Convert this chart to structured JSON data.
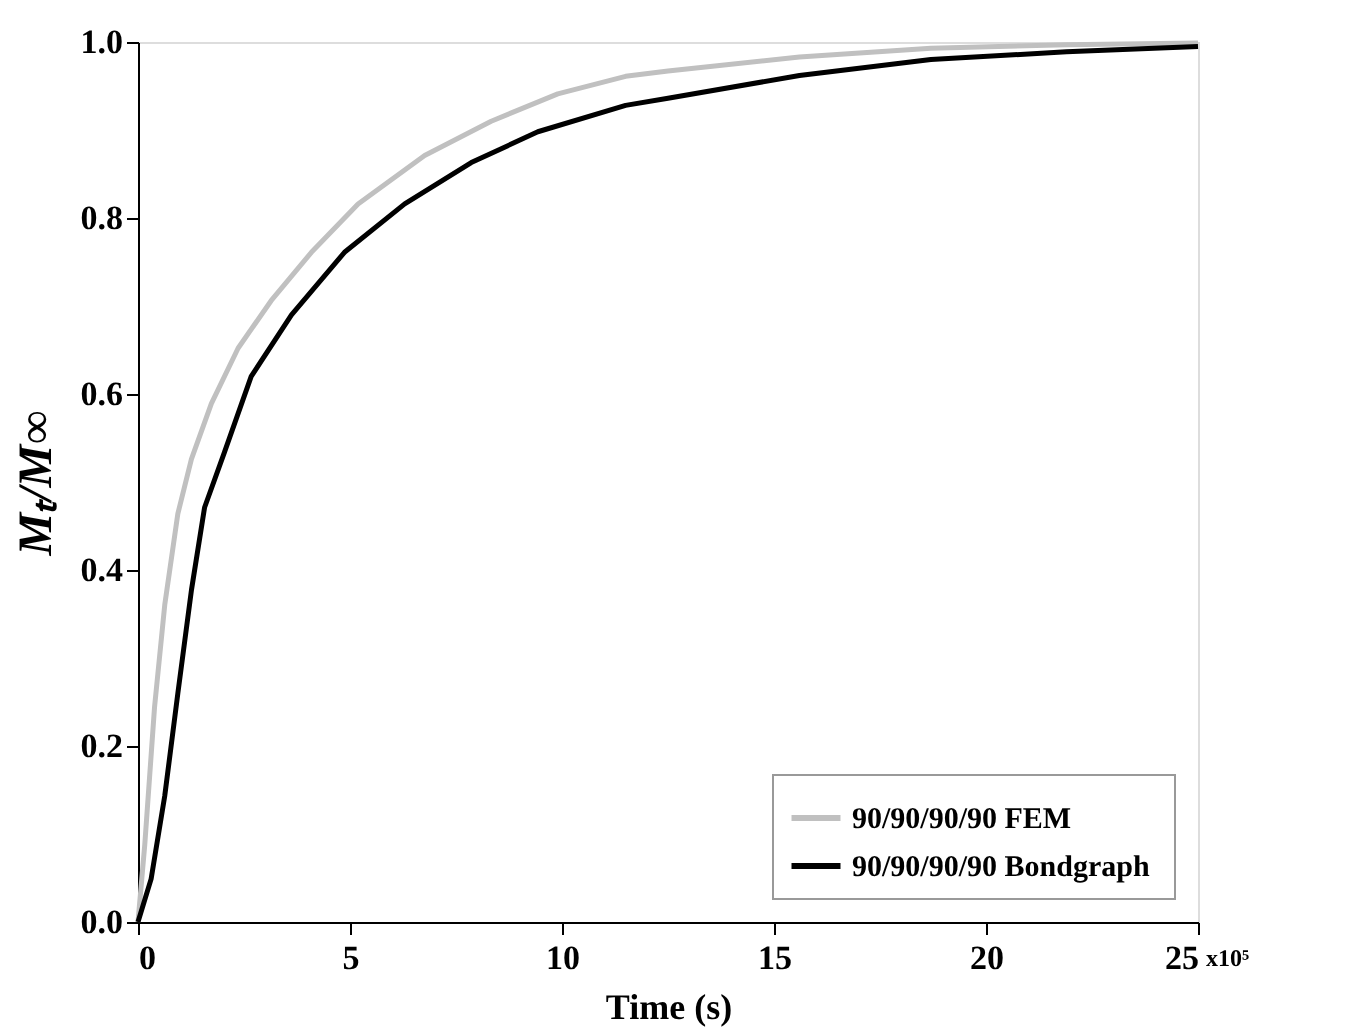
{
  "chart_data": {
    "type": "line",
    "xlabel": "Time (s)",
    "ylabel": "Mₜ/M∞",
    "annotations": [
      "x10⁵"
    ],
    "xlim": [
      0,
      25
    ],
    "xticks": [
      0,
      5,
      10,
      15,
      20,
      25
    ],
    "ylim": [
      0,
      1
    ],
    "yticks": [
      {
        "value": 0,
        "label": "0.0"
      },
      {
        "value": 0.2,
        "label": "0.2"
      },
      {
        "value": 0.4,
        "label": "0.4"
      },
      {
        "value": 0.6,
        "label": "0.6"
      },
      {
        "value": 0.8,
        "label": "0.8"
      },
      {
        "value": 1,
        "label": "1.0"
      }
    ],
    "grid": false,
    "legend": "bottom right",
    "marker": "none",
    "line_style": "solid",
    "series": [
      {
        "name": "90/90/90/90  FEM",
        "color": "#c0c0c0",
        "x": [
          0,
          0.16,
          0.39,
          0.63,
          0.94,
          1.26,
          1.73,
          2.36,
          3.14,
          4.09,
          5.19,
          6.76,
          8.33,
          9.9,
          11.5,
          12.5,
          15.6,
          18.7,
          21.9,
          25
        ],
        "values": [
          0,
          0.088,
          0.244,
          0.36,
          0.464,
          0.526,
          0.589,
          0.652,
          0.706,
          0.761,
          0.816,
          0.871,
          0.91,
          0.941,
          0.961,
          0.967,
          0.983,
          0.993,
          0.997,
          0.999
        ]
      },
      {
        "name": "90/90/90/90  Bondgraph",
        "color": "#000000",
        "x": [
          0,
          0.31,
          0.63,
          0.94,
          1.26,
          1.57,
          2.04,
          2.67,
          3.62,
          4.87,
          6.29,
          7.86,
          9.43,
          11.5,
          12.5,
          15.6,
          18.7,
          21.9,
          25
        ],
        "values": [
          0,
          0.049,
          0.143,
          0.26,
          0.377,
          0.471,
          0.534,
          0.62,
          0.69,
          0.761,
          0.816,
          0.863,
          0.898,
          0.928,
          0.936,
          0.962,
          0.98,
          0.989,
          0.995
        ]
      }
    ]
  }
}
